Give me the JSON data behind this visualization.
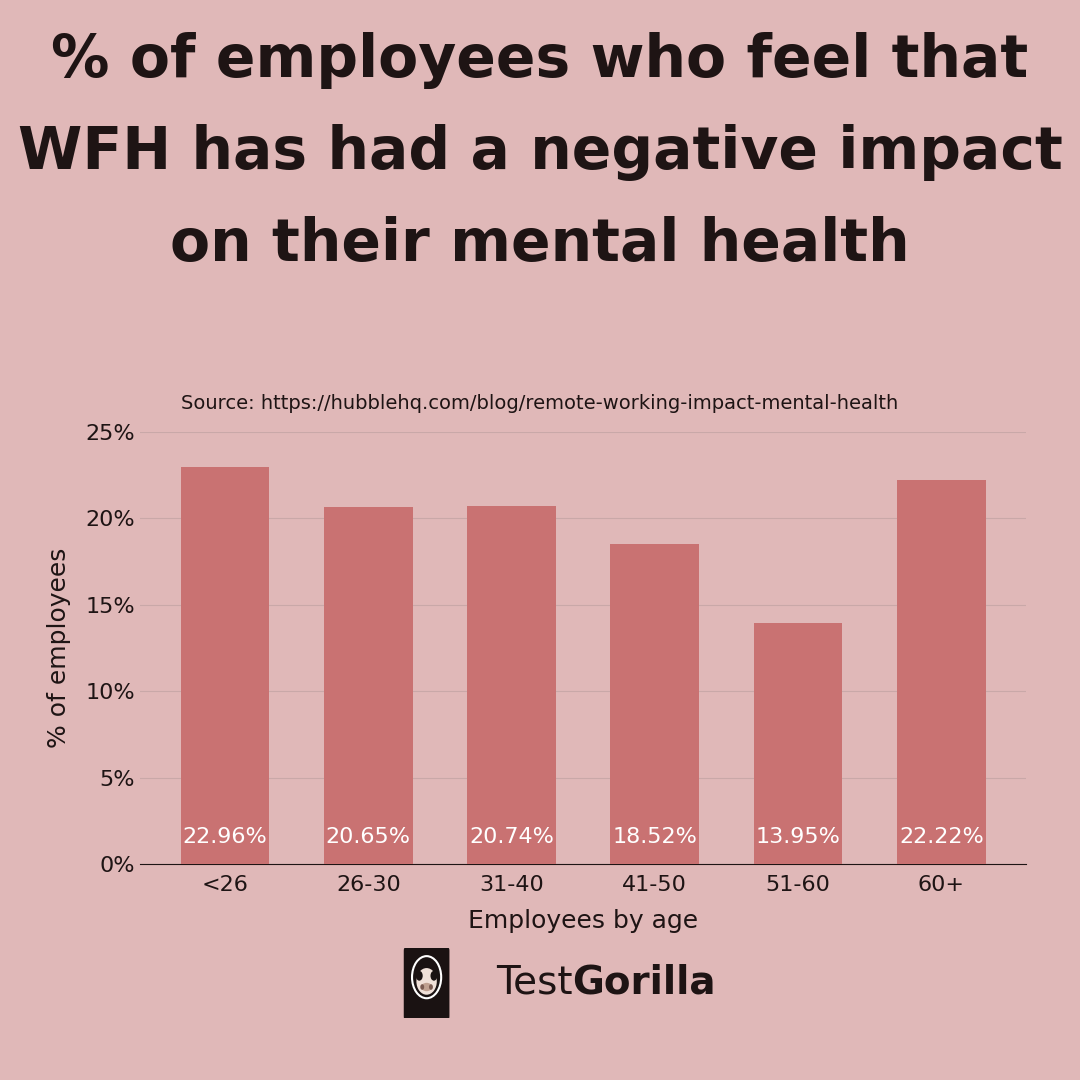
{
  "title_line1": "% of employees who feel that",
  "title_line2": "WFH has had a negative impact",
  "title_line3": "on their mental health",
  "source": "Source: https://hubblehq.com/blog/remote-working-impact-mental-health",
  "categories": [
    "<26",
    "26-30",
    "31-40",
    "41-50",
    "51-60",
    "60+"
  ],
  "values": [
    22.96,
    20.65,
    20.74,
    18.52,
    13.95,
    22.22
  ],
  "labels": [
    "22.96%",
    "20.65%",
    "20.74%",
    "18.52%",
    "13.95%",
    "22.22%"
  ],
  "bar_color": "#c97272",
  "background_color": "#e0b8b8",
  "text_color": "#1e1414",
  "grid_color": "#c9a8a8",
  "xlabel": "Employees by age",
  "ylabel": "% of employees",
  "ylim": [
    0,
    25
  ],
  "yticks": [
    0,
    5,
    10,
    15,
    20,
    25
  ],
  "ytick_labels": [
    "0%",
    "5%",
    "10%",
    "15%",
    "20%",
    "25%"
  ],
  "title_fontsize": 42,
  "source_fontsize": 14,
  "tick_fontsize": 16,
  "axis_label_fontsize": 18,
  "bar_label_fontsize": 16,
  "bar_label_color": "#ffffff",
  "brand_text_color": "#1e1414",
  "brand_fontsize": 28
}
